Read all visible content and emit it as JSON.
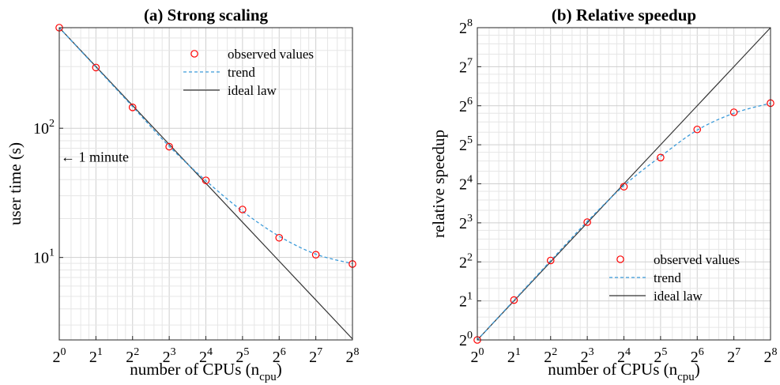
{
  "chart_data": [
    {
      "type": "line",
      "title": "(a) Strong scaling",
      "xlabel": "number of CPUs (n",
      "xlabel_sub": "cpu",
      "xlabel_close": ")",
      "ylabel": "user time (s)",
      "xscale": "log2",
      "yscale": "log10",
      "xlim": [
        1,
        256
      ],
      "ylim": [
        2.3,
        600
      ],
      "x_ticks": [
        {
          "base": "2",
          "exp": "0"
        },
        {
          "base": "2",
          "exp": "1"
        },
        {
          "base": "2",
          "exp": "2"
        },
        {
          "base": "2",
          "exp": "3"
        },
        {
          "base": "2",
          "exp": "4"
        },
        {
          "base": "2",
          "exp": "5"
        },
        {
          "base": "2",
          "exp": "6"
        },
        {
          "base": "2",
          "exp": "7"
        },
        {
          "base": "2",
          "exp": "8"
        }
      ],
      "y_ticks": [
        {
          "value": 10,
          "base": "10",
          "exp": "1"
        },
        {
          "value": 100,
          "base": "10",
          "exp": "2"
        }
      ],
      "x": [
        1,
        2,
        4,
        8,
        16,
        32,
        64,
        128,
        256
      ],
      "series": [
        {
          "name": "observed values",
          "style": "markers",
          "color": "#ff0000",
          "values": [
            600,
            295,
            145,
            72,
            39.5,
            23.5,
            14.2,
            10.5,
            8.9
          ]
        },
        {
          "name": "trend",
          "style": "dashed",
          "color": "#3a9ad9",
          "values": [
            600,
            297,
            147,
            72.5,
            39.3,
            22.8,
            14.6,
            10.6,
            8.95
          ]
        },
        {
          "name": "ideal law",
          "style": "solid",
          "color": "#333333",
          "values": [
            600,
            300,
            150,
            75,
            37.5,
            18.75,
            9.375,
            4.6875,
            2.34
          ]
        }
      ],
      "annotation": {
        "text": "← 1 minute",
        "y": 60
      },
      "legend": "top-right",
      "grid": true
    },
    {
      "type": "line",
      "title": "(b) Relative speedup",
      "xlabel": "number of CPUs (n",
      "xlabel_sub": "cpu",
      "xlabel_close": ")",
      "ylabel": "relative speedup",
      "xscale": "log2",
      "yscale": "log2",
      "xlim": [
        1,
        256
      ],
      "ylim": [
        1,
        256
      ],
      "x_ticks": [
        {
          "base": "2",
          "exp": "0"
        },
        {
          "base": "2",
          "exp": "1"
        },
        {
          "base": "2",
          "exp": "2"
        },
        {
          "base": "2",
          "exp": "3"
        },
        {
          "base": "2",
          "exp": "4"
        },
        {
          "base": "2",
          "exp": "5"
        },
        {
          "base": "2",
          "exp": "6"
        },
        {
          "base": "2",
          "exp": "7"
        },
        {
          "base": "2",
          "exp": "8"
        }
      ],
      "y_ticks": [
        {
          "value": 1,
          "base": "2",
          "exp": "0"
        },
        {
          "value": 2,
          "base": "2",
          "exp": "1"
        },
        {
          "value": 4,
          "base": "2",
          "exp": "2"
        },
        {
          "value": 8,
          "base": "2",
          "exp": "3"
        },
        {
          "value": 16,
          "base": "2",
          "exp": "4"
        },
        {
          "value": 32,
          "base": "2",
          "exp": "5"
        },
        {
          "value": 64,
          "base": "2",
          "exp": "6"
        },
        {
          "value": 128,
          "base": "2",
          "exp": "7"
        },
        {
          "value": 256,
          "base": "2",
          "exp": "8"
        }
      ],
      "x": [
        1,
        2,
        4,
        8,
        16,
        32,
        64,
        128,
        256
      ],
      "series": [
        {
          "name": "observed values",
          "style": "markers",
          "color": "#ff0000",
          "values": [
            1,
            2.03,
            4.1,
            8.1,
            15.2,
            25.5,
            42,
            57,
            67
          ]
        },
        {
          "name": "trend",
          "style": "dashed",
          "color": "#3a9ad9",
          "values": [
            1,
            2.02,
            4.08,
            8.2,
            15.5,
            26,
            41.5,
            56,
            67
          ]
        },
        {
          "name": "ideal law",
          "style": "solid",
          "color": "#333333",
          "values": [
            1,
            2,
            4,
            8,
            16,
            32,
            64,
            128,
            256
          ]
        }
      ],
      "legend": "bottom-right",
      "grid": true
    }
  ]
}
